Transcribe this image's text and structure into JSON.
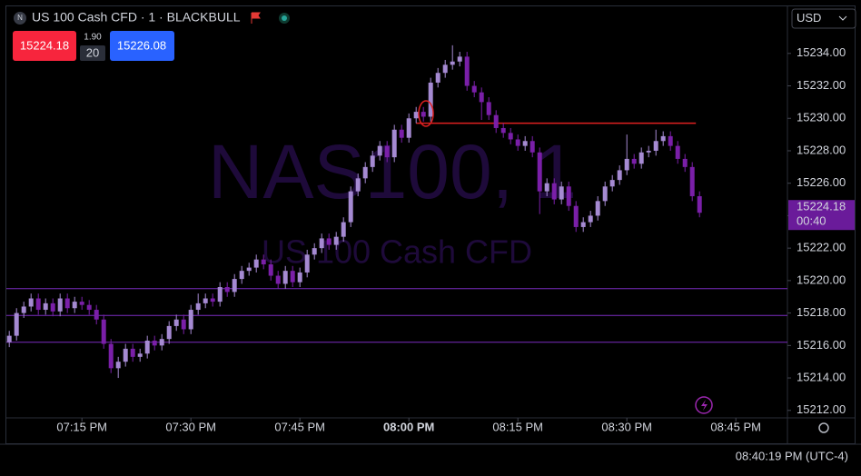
{
  "header": {
    "symbol": "US 100 Cash CFD · 1 · BLACKBULL",
    "icon": "N",
    "sell": "15224.18",
    "spread": "1.90",
    "qty": "20",
    "buy": "15226.08",
    "currency": "USD",
    "clock": "08:40:19 PM (UTC-4)"
  },
  "chart_data": {
    "type": "candlestick",
    "watermark": "NAS100, 1",
    "watermark_sub": "US 100 Cash CFD",
    "up_color": "#a58ad2",
    "down_color": "#7a1fa8",
    "open": [
      15216.2,
      15216.6,
      15218.0,
      15218.4,
      15218.9,
      15218.2,
      15218.6,
      15218.1,
      15218.9,
      15218.3,
      15218.7,
      15218.5,
      15218.2,
      15217.6,
      15216.1,
      15214.6,
      15215.0,
      15215.8,
      15215.3,
      15215.5,
      15216.3,
      15216.0,
      15216.4,
      15217.2,
      15217.6,
      15217.0,
      15218.2,
      15218.6,
      15218.9,
      15218.7,
      15219.6,
      15219.3,
      15220.1,
      15220.6,
      15220.8,
      15221.3,
      15221.0,
      15220.3,
      15219.8,
      15220.6,
      15219.9,
      15220.5,
      15221.6,
      15222.0,
      15222.6,
      15222.2,
      15222.7,
      15223.6,
      15225.5,
      15226.3,
      15227.0,
      15227.7,
      15228.3,
      15227.6,
      15229.3,
      15228.8,
      15230.0,
      15230.4,
      15230.1,
      15232.2,
      15232.8,
      15233.3,
      15233.5,
      15233.8,
      15232.0,
      15231.6,
      15231.0,
      15230.2,
      15229.4,
      15229.1,
      15228.7,
      15228.3,
      15228.6,
      15227.9,
      15225.5,
      15226.0,
      15225.0,
      15225.8,
      15224.6,
      15223.3,
      15223.6,
      15224.0,
      15224.9,
      15225.8,
      15226.2,
      15226.8,
      15227.5,
      15227.2,
      15227.9,
      15228.0,
      15228.6,
      15228.9,
      15228.3,
      15227.5,
      15227.0,
      15225.2
    ],
    "high": [
      15216.9,
      15218.3,
      15218.7,
      15219.2,
      15219.2,
      15218.9,
      15218.9,
      15219.2,
      15219.2,
      15219.0,
      15219.0,
      15218.8,
      15218.5,
      15217.9,
      15216.4,
      15215.3,
      15216.1,
      15216.1,
      15215.8,
      15216.6,
      15216.6,
      15216.7,
      15217.5,
      15217.9,
      15217.9,
      15218.5,
      15219.2,
      15219.2,
      15219.2,
      15219.9,
      15219.9,
      15220.4,
      15220.9,
      15221.1,
      15221.6,
      15221.6,
      15221.3,
      15220.6,
      15220.9,
      15220.9,
      15220.8,
      15221.9,
      15222.3,
      15222.9,
      15222.9,
      15223.0,
      15223.9,
      15225.8,
      15226.6,
      15227.3,
      15228.0,
      15228.6,
      15228.6,
      15229.6,
      15229.6,
      15230.3,
      15230.7,
      15230.7,
      15232.5,
      15233.1,
      15233.6,
      15234.5,
      15234.1,
      15234.1,
      15232.3,
      15231.9,
      15231.3,
      15230.5,
      15229.7,
      15229.4,
      15229.0,
      15228.9,
      15228.9,
      15228.2,
      15226.3,
      15226.3,
      15226.1,
      15226.1,
      15224.9,
      15223.9,
      15224.3,
      15225.2,
      15226.1,
      15226.5,
      15227.1,
      15229.0,
      15227.8,
      15228.2,
      15228.3,
      15229.3,
      15229.2,
      15229.2,
      15228.6,
      15227.8,
      15227.3,
      15225.5
    ],
    "low": [
      15215.9,
      15216.3,
      15217.7,
      15218.1,
      15217.9,
      15217.9,
      15217.8,
      15217.8,
      15218.0,
      15218.0,
      15218.2,
      15217.9,
      15217.3,
      15215.8,
      15214.3,
      15214.0,
      15214.7,
      15215.0,
      15215.0,
      15215.2,
      15215.7,
      15215.7,
      15216.1,
      15216.9,
      15216.7,
      15216.7,
      15217.9,
      15218.3,
      15218.4,
      15218.4,
      15219.0,
      15219.0,
      15219.8,
      15220.3,
      15220.5,
      15220.7,
      15220.0,
      15219.5,
      15219.5,
      15219.6,
      15219.6,
      15220.2,
      15221.3,
      15221.7,
      15221.9,
      15221.9,
      15222.4,
      15223.3,
      15225.2,
      15226.0,
      15226.7,
      15227.4,
      15227.3,
      15227.3,
      15228.5,
      15228.5,
      15229.7,
      15229.8,
      15229.8,
      15231.9,
      15232.5,
      15233.0,
      15233.2,
      15231.7,
      15231.3,
      15229.9,
      15229.9,
      15229.1,
      15228.8,
      15228.4,
      15228.0,
      15228.0,
      15227.6,
      15224.1,
      15225.2,
      15224.7,
      15224.7,
      15224.3,
      15223.0,
      15223.0,
      15223.3,
      15223.7,
      15224.6,
      15225.5,
      15225.9,
      15226.5,
      15226.9,
      15226.9,
      15227.6,
      15227.7,
      15228.3,
      15228.0,
      15227.2,
      15226.7,
      15224.9,
      15223.9
    ],
    "close": [
      15216.6,
      15218.0,
      15218.4,
      15218.9,
      15218.2,
      15218.6,
      15218.1,
      15218.9,
      15218.3,
      15218.7,
      15218.5,
      15218.2,
      15217.6,
      15216.1,
      15214.6,
      15215.0,
      15215.8,
      15215.3,
      15215.5,
      15216.3,
      15216.0,
      15216.4,
      15217.2,
      15217.6,
      15217.0,
      15218.2,
      15218.6,
      15218.9,
      15218.7,
      15219.6,
      15219.3,
      15220.1,
      15220.6,
      15220.8,
      15221.3,
      15221.0,
      15220.3,
      15219.8,
      15220.6,
      15219.9,
      15220.5,
      15221.6,
      15222.0,
      15222.6,
      15222.2,
      15222.7,
      15223.6,
      15225.5,
      15226.3,
      15227.0,
      15227.7,
      15228.3,
      15227.6,
      15229.3,
      15228.8,
      15230.0,
      15230.4,
      15230.1,
      15232.2,
      15232.8,
      15233.3,
      15233.5,
      15233.8,
      15232.0,
      15231.6,
      15231.0,
      15230.2,
      15229.4,
      15229.1,
      15228.7,
      15228.3,
      15228.6,
      15227.9,
      15225.5,
      15226.0,
      15225.0,
      15225.8,
      15224.6,
      15223.3,
      15223.6,
      15224.0,
      15224.9,
      15225.8,
      15226.2,
      15226.8,
      15227.5,
      15227.2,
      15227.9,
      15228.0,
      15228.6,
      15228.9,
      15228.3,
      15227.5,
      15227.0,
      15225.2,
      15224.18
    ],
    "xlim": [
      -0.4,
      107.1
    ],
    "xticks": [
      {
        "value": 10,
        "label": "07:15 PM"
      },
      {
        "value": 25,
        "label": "07:30 PM"
      },
      {
        "value": 40,
        "label": "07:45 PM"
      },
      {
        "value": 55,
        "label": "08:00 PM",
        "bold": true
      },
      {
        "value": 70,
        "label": "08:15 PM"
      },
      {
        "value": 85,
        "label": "08:30 PM"
      },
      {
        "value": 100,
        "label": "08:45 PM"
      }
    ],
    "ylim": [
      15211.54,
      15236.9
    ],
    "yticks": [
      {
        "value": 15212,
        "label": "15212.00"
      },
      {
        "value": 15214,
        "label": "15214.00"
      },
      {
        "value": 15216,
        "label": "15216.00"
      },
      {
        "value": 15218,
        "label": "15218.00"
      },
      {
        "value": 15220,
        "label": "15220.00"
      },
      {
        "value": 15222,
        "label": "15222.00"
      },
      {
        "value": 15224,
        "label": "15224.00"
      },
      {
        "value": 15226,
        "label": "15226.00"
      },
      {
        "value": 15228,
        "label": "15228.00"
      },
      {
        "value": 15230,
        "label": "15230.00"
      },
      {
        "value": 15232,
        "label": "15232.00"
      },
      {
        "value": 15234,
        "label": "15234.00"
      }
    ],
    "hlines": [
      15219.5,
      15217.85,
      15216.2
    ],
    "hline_color": "#7b2cbf",
    "segment": {
      "value": 15229.7,
      "x": [
        56,
        94.5
      ],
      "color": "#e02020"
    },
    "last_label": {
      "value": 15224.18,
      "label": "15224.18",
      "countdown": "00:40",
      "color": "#6a1b9a"
    }
  }
}
